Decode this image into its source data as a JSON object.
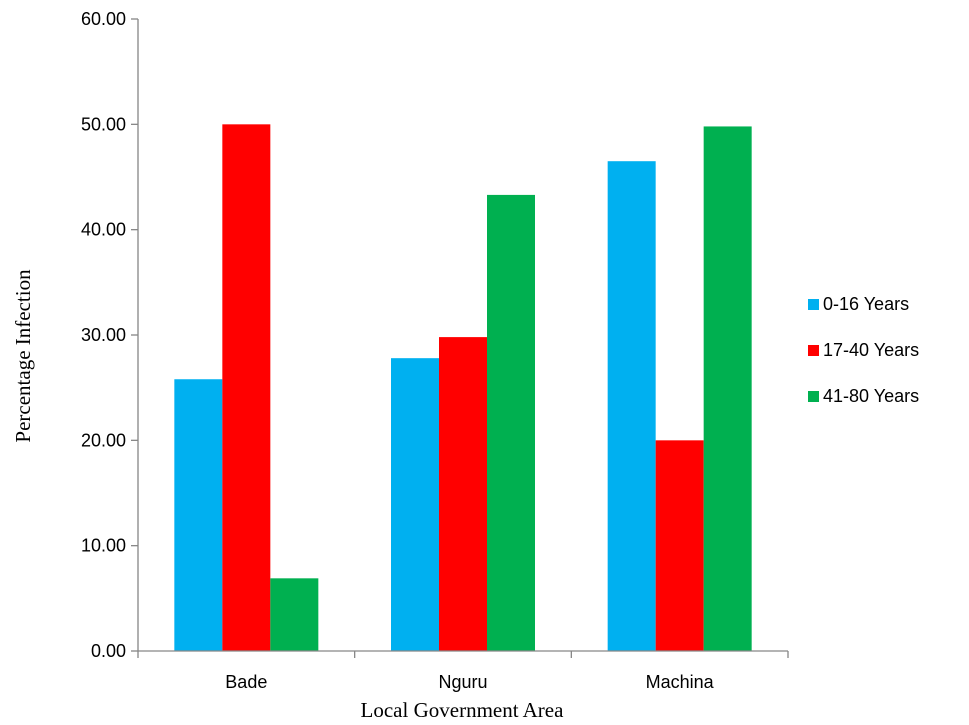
{
  "chart_data": {
    "type": "bar",
    "categories": [
      "Bade",
      "Nguru",
      "Machina"
    ],
    "series": [
      {
        "name": "0-16 Years",
        "values": [
          25.8,
          27.8,
          46.5
        ],
        "color": "#00b0f0"
      },
      {
        "name": "17-40 Years",
        "values": [
          50.0,
          29.8,
          20.0
        ],
        "color": "#ff0000"
      },
      {
        "name": "41-80 Years",
        "values": [
          6.9,
          43.3,
          49.8
        ],
        "color": "#00b050"
      }
    ],
    "title": "",
    "xlabel": "Local Government Area",
    "ylabel": "Percentage Infection",
    "ylim": [
      0,
      60
    ],
    "yticks": [
      "0.00",
      "10.00",
      "20.00",
      "30.00",
      "40.00",
      "50.00",
      "60.00"
    ],
    "grid": false,
    "legend": "right"
  }
}
